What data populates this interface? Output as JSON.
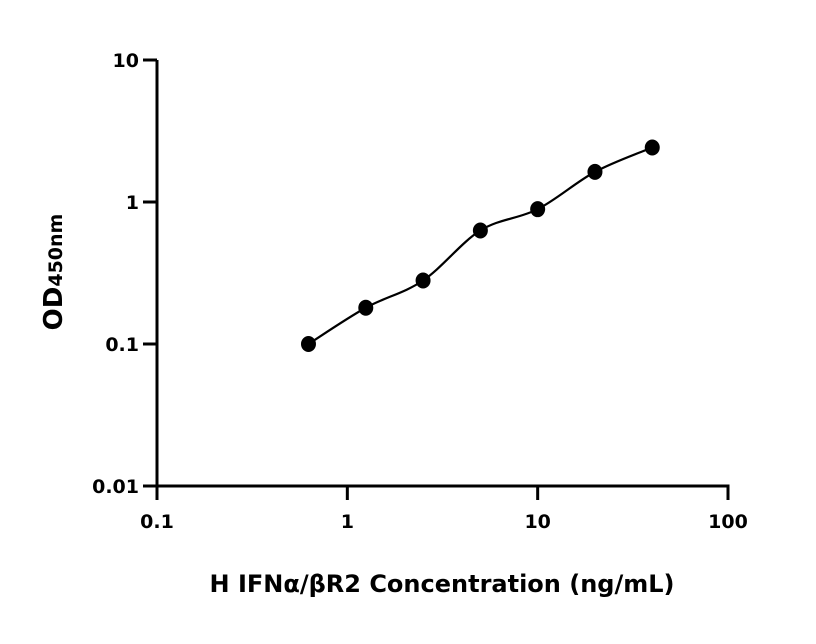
{
  "chart_data": {
    "type": "scatter",
    "xlabel": "H IFNα/βR2 Concentration (ng/mL)",
    "ylabel": {
      "main": "OD",
      "subscript": "450nm"
    },
    "x_scale": "log",
    "y_scale": "log",
    "xlim": [
      0.1,
      100
    ],
    "ylim": [
      0.01,
      10
    ],
    "x_ticks": [
      "0.1",
      "1",
      "10",
      "100"
    ],
    "y_ticks": [
      "0.01",
      "0.1",
      "1",
      "10"
    ],
    "grid": false,
    "fit_curve": true,
    "colors": {
      "points": "#000000",
      "curve": "#000000"
    },
    "series": [
      {
        "x": [
          0.625,
          1.25,
          2.5,
          5,
          10,
          20,
          40
        ],
        "y": [
          0.1,
          0.18,
          0.28,
          0.63,
          0.89,
          1.63,
          2.42
        ]
      }
    ]
  }
}
